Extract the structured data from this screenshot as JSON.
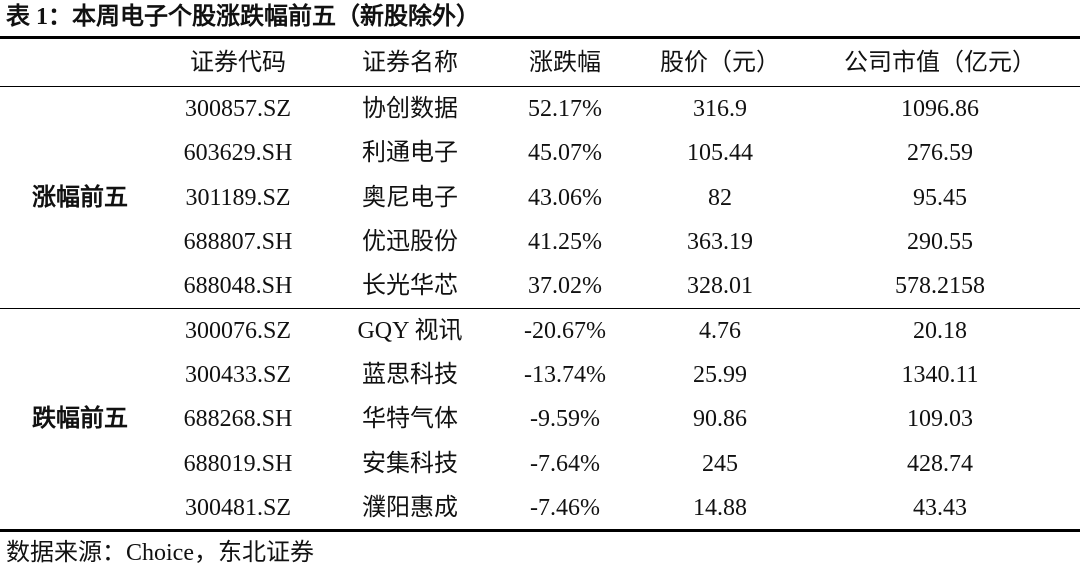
{
  "title": "表 1：本周电子个股涨跌幅前五（新股除外）",
  "table": {
    "header": [
      "证券代码",
      "证券名称",
      "涨跌幅",
      "股价（元）",
      "公司市值（亿元）"
    ],
    "groups": [
      {
        "label": "涨幅前五",
        "rows": [
          [
            "300857.SZ",
            "协创数据",
            "52.17%",
            "316.9",
            "1096.86"
          ],
          [
            "603629.SH",
            "利通电子",
            "45.07%",
            "105.44",
            "276.59"
          ],
          [
            "301189.SZ",
            "奥尼电子",
            "43.06%",
            "82",
            "95.45"
          ],
          [
            "688807.SH",
            "优迅股份",
            "41.25%",
            "363.19",
            "290.55"
          ],
          [
            "688048.SH",
            "长光华芯",
            "37.02%",
            "328.01",
            "578.2158"
          ]
        ]
      },
      {
        "label": "跌幅前五",
        "rows": [
          [
            "300076.SZ",
            "GQY 视讯",
            "-20.67%",
            "4.76",
            "20.18"
          ],
          [
            "300433.SZ",
            "蓝思科技",
            "-13.74%",
            "25.99",
            "1340.11"
          ],
          [
            "688268.SH",
            "华特气体",
            "-9.59%",
            "90.86",
            "109.03"
          ],
          [
            "688019.SH",
            "安集科技",
            "-7.64%",
            "245",
            "428.74"
          ],
          [
            "300481.SZ",
            "濮阳惠成",
            "-7.46%",
            "14.88",
            "43.43"
          ]
        ]
      }
    ]
  },
  "source": "数据来源：Choice，东北证券"
}
